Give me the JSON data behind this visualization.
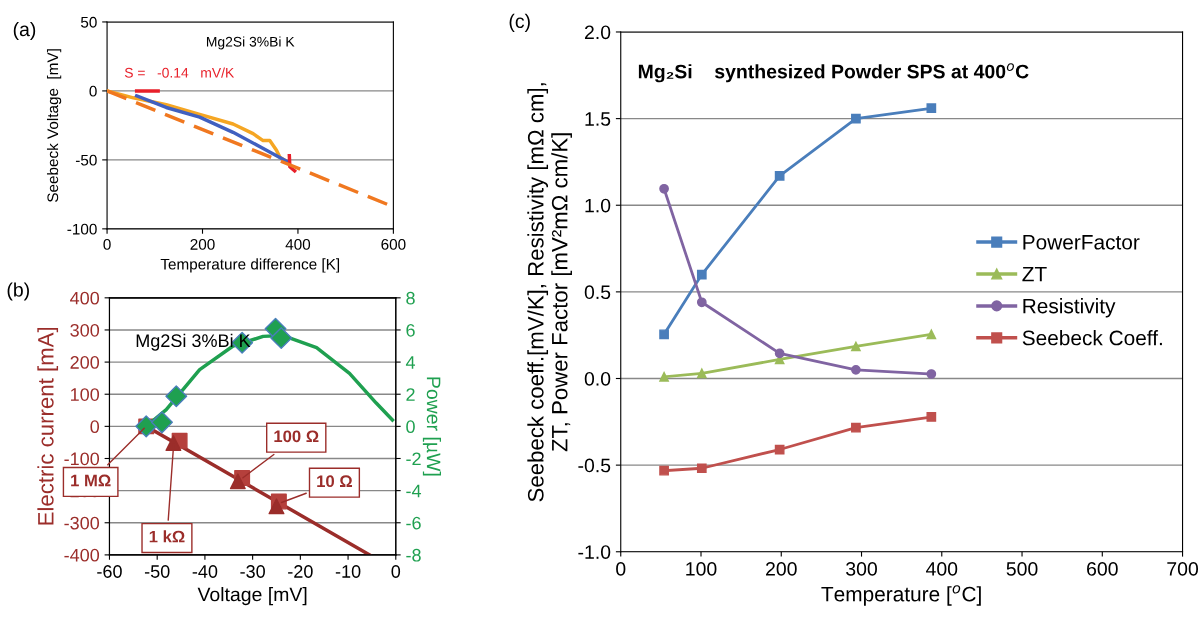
{
  "chart_data": [
    {
      "type": "line",
      "xlabel": "Temperature difference [K]",
      "ylabel": "Seebeck Voltage  [mV]",
      "annotations": [
        "(a)",
        "Mg2Si 3%Bi K",
        "S =   -0.14   mV/K"
      ],
      "xlim": [
        0,
        600
      ],
      "xticks": [
        0,
        200,
        400,
        600
      ],
      "ylim": [
        -100,
        50
      ],
      "yticks": [
        -100,
        -50,
        0,
        50
      ],
      "grid": "y",
      "legend": false,
      "series": [
        {
          "color": "#f5a623",
          "x": [
            0,
            55,
            124,
            194,
            264,
            306,
            327,
            341,
            355,
            362,
            376
          ],
          "values": [
            0,
            -5,
            -10,
            -17,
            -24,
            -31,
            -36,
            -36,
            -43,
            -48,
            -51
          ]
        },
        {
          "color": "#4060c0",
          "x": [
            62,
            124,
            194,
            264,
            334,
            376
          ],
          "values": [
            -3.6,
            -12,
            -19,
            -30,
            -43,
            -51
          ]
        },
        {
          "color": "#e8202a",
          "x": [
            62,
            107,
            110,
            382,
            383,
            393
          ],
          "values": [
            0,
            0,
            null,
            -47,
            -55,
            -58
          ]
        },
        {
          "color": "#f07820",
          "line_style": "dashed",
          "x": [
            0,
            600
          ],
          "values": [
            0,
            -84
          ]
        }
      ]
    },
    {
      "type": "line",
      "xlabel": "Voltage [mV]",
      "ylabel": "Electric current [mA]",
      "y2label": "Power [µW]",
      "annotations": [
        "(b)",
        "Mg2Si 3%Bi K",
        {
          "text": "1 MΩ",
          "x": -52.3,
          "y": 0
        },
        {
          "text": "1 kΩ",
          "x": -46.5,
          "y": -45
        },
        {
          "text": "100 Ω",
          "x": -32.5,
          "y": -165
        },
        {
          "text": "10 Ω",
          "x": -24.5,
          "y": -240
        }
      ],
      "xlim": [
        -60,
        0
      ],
      "xticks": [
        -60,
        -50,
        -40,
        -30,
        -20,
        -10,
        0
      ],
      "ylim": [
        -400,
        400
      ],
      "yticks": [
        -400,
        -300,
        -200,
        -100,
        0,
        100,
        200,
        300,
        400
      ],
      "y2lim": [
        -8,
        8
      ],
      "y2ticks": [
        -8,
        -6,
        -4,
        -2,
        0,
        2,
        4,
        6,
        8
      ],
      "grid": "y",
      "legend": false,
      "series": [
        {
          "color": "#9b2d2a",
          "x": [
            -52.3,
            -5.5
          ],
          "values": [
            0,
            -400
          ]
        },
        {
          "type": "scatter",
          "marker": "square",
          "color": "#b5403c",
          "x": [
            -52.3,
            -45.3,
            -32.2,
            -24.5
          ],
          "values": [
            0,
            -45,
            -161,
            -234
          ]
        },
        {
          "type": "scatter",
          "marker": "triangle",
          "color": "#9b2d2a",
          "x": [
            -46.6,
            -33.1,
            -25.0
          ],
          "values": [
            -52,
            -171,
            -249
          ]
        },
        {
          "axis": "y2",
          "color": "#1fa050",
          "x": [
            -52.3,
            -48.1,
            -41.1,
            -34.1,
            -27.8,
            -23.6,
            -16.6,
            -9.7,
            -4.1,
            -0.7
          ],
          "values": [
            0,
            1.04,
            3.53,
            5.0,
            5.6,
            5.65,
            4.9,
            3.3,
            1.45,
            0.4
          ]
        },
        {
          "axis": "y2",
          "type": "scatter",
          "marker": "diamond",
          "color": "#1fa050",
          "x": [
            -52.3,
            -49.0,
            -46.0,
            -32.2,
            -25.2,
            -24.0
          ],
          "values": [
            0,
            0.25,
            1.87,
            5.2,
            6.07,
            5.5
          ]
        }
      ]
    },
    {
      "type": "line",
      "xlabel": "Temperature [$^{o}$C]",
      "ylabel": "Seebeck coeff.[mV/K], Resistivity [mΩ cm],\nZT, Power Factor [mV²mΩ cm/K]",
      "annotations": [
        "(c)",
        "Mg₂Si    synthesized Powder SPS at 400$^{o}$C"
      ],
      "xlim": [
        0,
        700
      ],
      "xticks": [
        0,
        100,
        200,
        300,
        400,
        500,
        600,
        700
      ],
      "ylim": [
        -1.0,
        2.0
      ],
      "yticks": [
        {
          "value": -1.0,
          "label": "-1.0"
        },
        {
          "value": -0.5,
          "label": "-0.5"
        },
        {
          "value": 0,
          "label": "0.0"
        },
        {
          "value": 0.5,
          "label": "0.5"
        },
        {
          "value": 1.0,
          "label": "1.0"
        },
        {
          "value": 1.5,
          "label": "1.5"
        },
        {
          "value": 2.0,
          "label": "2.0"
        }
      ],
      "grid": "y",
      "legend": "right",
      "x": [
        54,
        101,
        198,
        293,
        387
      ],
      "series": [
        {
          "name": "PowerFactor",
          "color": "#4a7ebb",
          "marker": "square",
          "values": [
            0.255,
            0.6,
            1.17,
            1.5,
            1.56
          ]
        },
        {
          "name": "ZT",
          "color": "#9bbb59",
          "marker": "triangle",
          "values": [
            0.01,
            0.03,
            0.11,
            0.185,
            0.255
          ]
        },
        {
          "name": "Resistivity",
          "color": "#8064a2",
          "marker": "circle",
          "values": [
            1.095,
            0.44,
            0.145,
            0.05,
            0.026
          ]
        },
        {
          "name": "Seebeck Coeff.",
          "color": "#c0504d",
          "marker": "square",
          "values": [
            -0.532,
            -0.518,
            -0.41,
            -0.284,
            -0.222
          ]
        }
      ]
    }
  ]
}
